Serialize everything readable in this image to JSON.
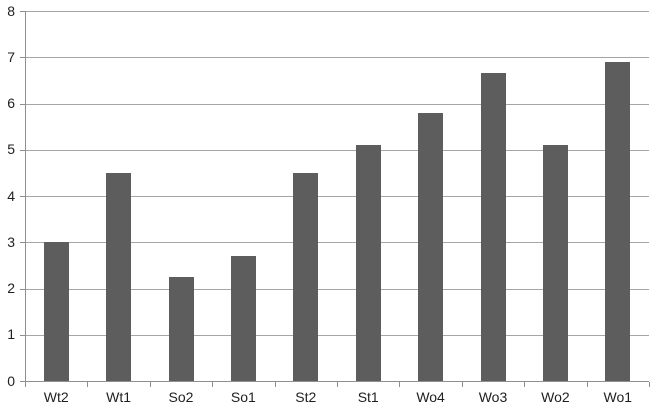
{
  "chart_data": {
    "type": "bar",
    "title": "",
    "xlabel": "",
    "ylabel": "",
    "categories": [
      "Wt2",
      "Wt1",
      "So2",
      "So1",
      "St2",
      "St1",
      "Wo4",
      "Wo3",
      "Wo2",
      "Wo1"
    ],
    "values": [
      3.0,
      4.5,
      2.25,
      2.7,
      4.5,
      5.1,
      5.8,
      6.65,
      5.1,
      6.9
    ],
    "ylim": [
      0,
      8
    ],
    "yticks": [
      0,
      1,
      2,
      3,
      4,
      5,
      6,
      7,
      8
    ],
    "grid": true,
    "legend": false,
    "colors": {
      "bar": "#5d5d5d",
      "gridline": "#a6a6a6",
      "axis": "#8f8f8f",
      "label": "#1f1f1f",
      "background": "#ffffff"
    }
  }
}
